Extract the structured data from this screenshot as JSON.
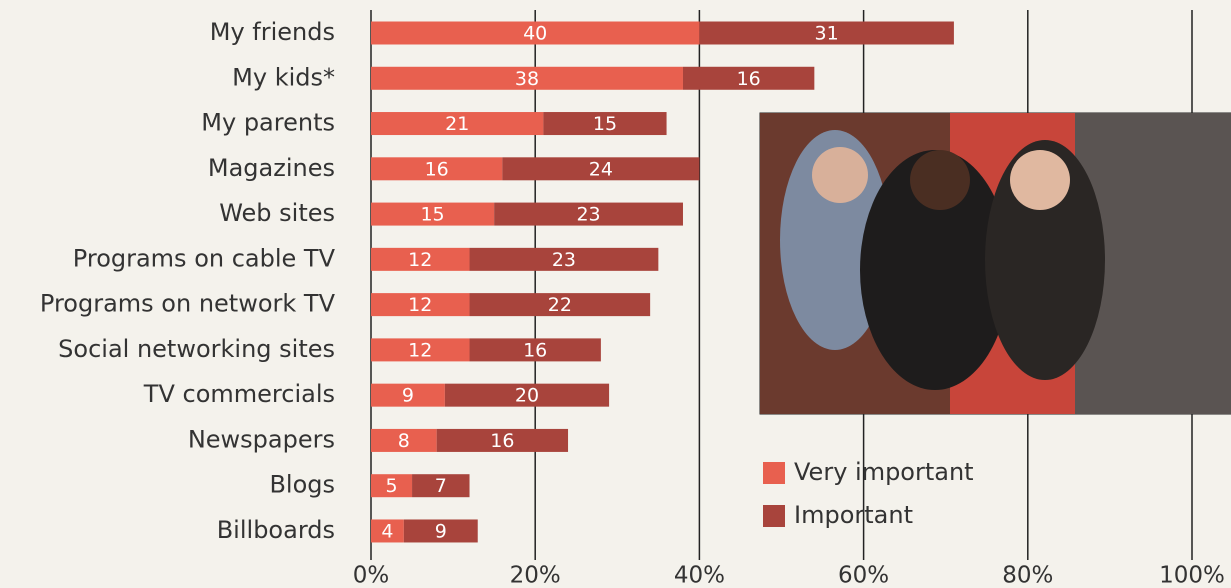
{
  "chart_data": {
    "type": "stacked-bar-horizontal",
    "categories": [
      "My friends",
      "My kids*",
      "My parents",
      "Magazines",
      "Web sites",
      "Programs on cable TV",
      "Programs on network TV",
      "Social networking sites",
      "TV commercials",
      "Newspapers",
      "Blogs",
      "Billboards"
    ],
    "series": [
      {
        "name": "Very important",
        "color": "#e8604f",
        "values": [
          40,
          38,
          21,
          16,
          15,
          12,
          12,
          12,
          9,
          8,
          5,
          4
        ]
      },
      {
        "name": "Important",
        "color": "#a8443c",
        "values": [
          31,
          16,
          15,
          24,
          23,
          23,
          22,
          16,
          20,
          16,
          7,
          9
        ]
      }
    ],
    "xlim": [
      0,
      100
    ],
    "xticks": [
      {
        "value": 0,
        "label": "0%"
      },
      {
        "value": 20,
        "label": "20%"
      },
      {
        "value": 40,
        "label": "40%"
      },
      {
        "value": 60,
        "label": "60%"
      },
      {
        "value": 80,
        "label": "80%"
      },
      {
        "value": 100,
        "label": "100%"
      }
    ],
    "grid": true
  }
}
